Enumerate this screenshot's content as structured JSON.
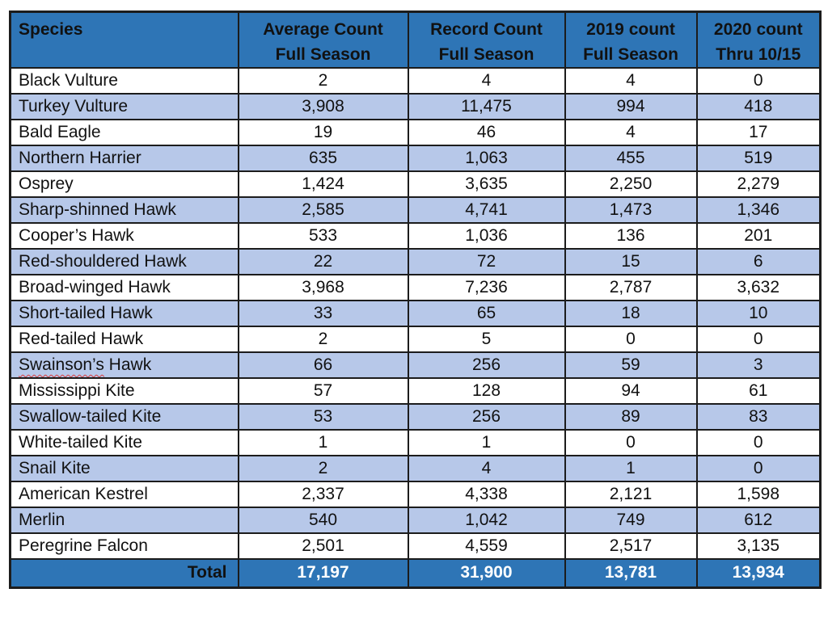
{
  "colors": {
    "header_bg": "#2E75B6",
    "band_bg": "#B7C8E9",
    "border": "#1C1C1C",
    "header_text": "#000000",
    "body_text": "#111111",
    "total_text": "#FFFFFF",
    "page_bg": "#FFFFFF",
    "squiggle": "#D83A3A"
  },
  "table": {
    "columns": [
      {
        "label": "Species"
      },
      {
        "label": "Average Count\nFull Season"
      },
      {
        "label": "Record Count\nFull Season"
      },
      {
        "label": "2019 count\nFull Season"
      },
      {
        "label": "2020 count\nThru 10/15"
      }
    ],
    "rows": [
      {
        "species": "Black Vulture",
        "values": [
          "2",
          "4",
          "4",
          "0"
        ]
      },
      {
        "species": "Turkey Vulture",
        "values": [
          "3,908",
          "11,475",
          "994",
          "418"
        ]
      },
      {
        "species": "Bald Eagle",
        "values": [
          "19",
          "46",
          "4",
          "17"
        ]
      },
      {
        "species": "Northern Harrier",
        "values": [
          "635",
          "1,063",
          "455",
          "519"
        ]
      },
      {
        "species": "Osprey",
        "values": [
          "1,424",
          "3,635",
          "2,250",
          "2,279"
        ]
      },
      {
        "species": "Sharp-shinned Hawk",
        "values": [
          "2,585",
          "4,741",
          "1,473",
          "1,346"
        ]
      },
      {
        "species": "Cooper’s Hawk",
        "values": [
          "533",
          "1,036",
          "136",
          "201"
        ]
      },
      {
        "species": "Red-shouldered Hawk",
        "values": [
          "22",
          "72",
          "15",
          "6"
        ]
      },
      {
        "species": "Broad-winged Hawk",
        "values": [
          "3,968",
          "7,236",
          "2,787",
          "3,632"
        ]
      },
      {
        "species": "Short-tailed Hawk",
        "values": [
          "33",
          "65",
          "18",
          "10"
        ]
      },
      {
        "species": "Red-tailed Hawk",
        "values": [
          "2",
          "5",
          "0",
          "0"
        ]
      },
      {
        "species": "Swainson’s Hawk",
        "species_parts": [
          "Swainson’s",
          " Hawk"
        ],
        "squiggle_part": 0,
        "values": [
          "66",
          "256",
          "59",
          "3"
        ]
      },
      {
        "species": "Mississippi Kite",
        "values": [
          "57",
          "128",
          "94",
          "61"
        ]
      },
      {
        "species": "Swallow-tailed Kite",
        "values": [
          "53",
          "256",
          "89",
          "83"
        ]
      },
      {
        "species": "White-tailed Kite",
        "values": [
          "1",
          "1",
          "0",
          "0"
        ]
      },
      {
        "species": "Snail Kite",
        "values": [
          "2",
          "4",
          "1",
          "0"
        ]
      },
      {
        "species": "American Kestrel",
        "values": [
          "2,337",
          "4,338",
          "2,121",
          "1,598"
        ]
      },
      {
        "species": "Merlin",
        "values": [
          "540",
          "1,042",
          "749",
          "612"
        ]
      },
      {
        "species": "Peregrine Falcon",
        "values": [
          "2,501",
          "4,559",
          "2,517",
          "3,135"
        ]
      }
    ],
    "total": {
      "label": "Total",
      "values": [
        "17,197",
        "31,900",
        "13,781",
        "13,934"
      ]
    }
  }
}
